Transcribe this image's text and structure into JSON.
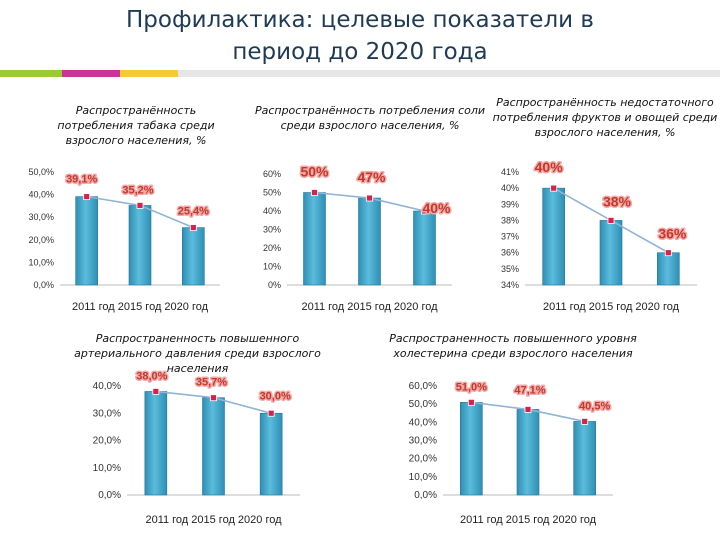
{
  "header": {
    "title_line1": "Профилактика: целевые показатели в",
    "title_line2": "период до 2020 года"
  },
  "colors": {
    "deco": [
      "#99cc33",
      "#cc3399",
      "#f2cc33",
      "#e6e6e6"
    ],
    "bar": "#2e8fb5",
    "bar_highlight": "#5cbcdc",
    "line": "#8fb4d8",
    "marker": "#d9204b",
    "label": "#c0392b",
    "label_glow": "#f4a9a9"
  },
  "chart_data": [
    {
      "type": "bar",
      "title": "Распространённость потребления табака среди взрослого населения, %",
      "categories": [
        "2011",
        "2015",
        "2020"
      ],
      "values": [
        39.1,
        35.2,
        25.4
      ],
      "data_labels": [
        "39,1%",
        "35,2%",
        "25,4%"
      ],
      "yticks": [
        "0,0%",
        "10,0%",
        "20,0%",
        "30,0%",
        "40,0%",
        "50,0%"
      ],
      "ylim": [
        0,
        50
      ],
      "xlabel": "2011 год 2015 год 2020 год",
      "trend_line": true
    },
    {
      "type": "bar",
      "title": "Распространённость потребления соли среди взрослого населения, %",
      "categories": [
        "2011",
        "2015",
        "2020"
      ],
      "values": [
        50,
        47,
        40
      ],
      "data_labels": [
        "50%",
        "47%",
        "40%"
      ],
      "yticks": [
        "0%",
        "10%",
        "20%",
        "30%",
        "40%",
        "50%",
        "60%"
      ],
      "ylim": [
        0,
        60
      ],
      "xlabel": "2011 год 2015 год 2020 год",
      "trend_line": true
    },
    {
      "type": "bar",
      "title": "Распространённость недостаточного потребления фруктов и овощей среди взрослого населения, %",
      "categories": [
        "2011",
        "2015",
        "2020"
      ],
      "values": [
        40,
        38,
        36
      ],
      "data_labels": [
        "40%",
        "38%",
        "36%"
      ],
      "yticks": [
        "34%",
        "35%",
        "36%",
        "37%",
        "38%",
        "39%",
        "40%",
        "41%"
      ],
      "ylim": [
        34,
        41
      ],
      "xlabel": "2011 год 2015 год 2020 год",
      "trend_line": true
    },
    {
      "type": "bar",
      "title": "Распространенность повышенного артериального давления среди взрослого населения",
      "categories": [
        "2011",
        "2015",
        "2020"
      ],
      "values": [
        38.0,
        35.7,
        30.0
      ],
      "data_labels": [
        "38,0%",
        "35,7%",
        "30,0%"
      ],
      "yticks": [
        "0,0%",
        "10,0%",
        "20,0%",
        "30,0%",
        "40,0%"
      ],
      "ylim": [
        0,
        40
      ],
      "xlabel": "2011 год 2015 год 2020 год",
      "trend_line": true
    },
    {
      "type": "bar",
      "title": "Распространенность повышенного уровня холестерина среди взрослого населения",
      "categories": [
        "2011",
        "2015",
        "2020"
      ],
      "values": [
        51.0,
        47.1,
        40.5
      ],
      "data_labels": [
        "51,0%",
        "47,1%",
        "40,5%"
      ],
      "yticks": [
        "0,0%",
        "10,0%",
        "20,0%",
        "30,0%",
        "40,0%",
        "50,0%",
        "60,0%"
      ],
      "ylim": [
        0,
        60
      ],
      "xlabel": "2011 год 2015 год 2020 год",
      "trend_line": true
    }
  ]
}
